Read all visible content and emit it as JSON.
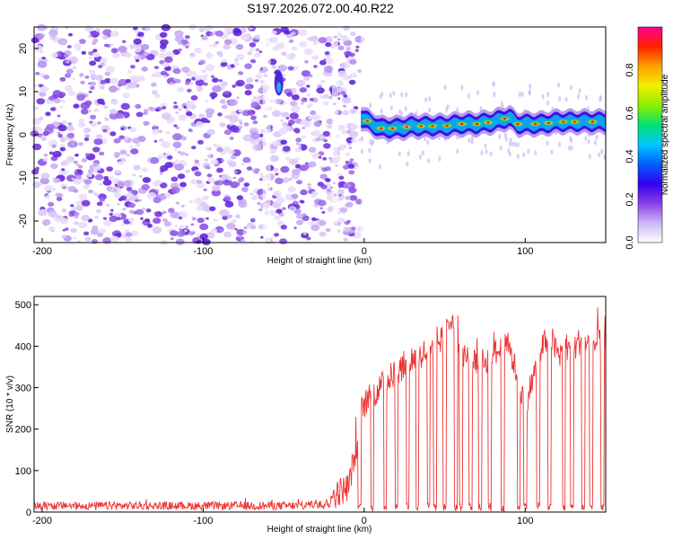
{
  "title": "S197.2026.072.00.40.R22",
  "chart_data": [
    {
      "type": "heatmap",
      "xlabel": "Height of straight line (km)",
      "ylabel": "Frequency (Hz)",
      "xlim": [
        -205,
        150
      ],
      "ylim": [
        -25,
        25
      ],
      "xticks": [
        -200,
        -100,
        0,
        100
      ],
      "yticks": [
        -20,
        -10,
        0,
        10,
        20
      ],
      "colorbar": {
        "label": "Normalized spectral amplitude",
        "range": [
          0.0,
          1.0
        ],
        "ticks": [
          0.0,
          0.2,
          0.4,
          0.6,
          0.8
        ],
        "tick_labels": [
          "0.0",
          "0.2",
          "0.4",
          "0.6",
          "0.8"
        ],
        "colors": [
          "#ffffff",
          "#ccb6f5",
          "#8a3fe6",
          "#3300ee",
          "#0060ff",
          "#00c8ff",
          "#00e070",
          "#8cf000",
          "#f0f000",
          "#ffa000",
          "#ff2000",
          "#ff0090"
        ]
      },
      "noise_region_x": [
        -205,
        -2
      ],
      "signal_track": {
        "x": [
          -2,
          10,
          20,
          30,
          40,
          50,
          60,
          70,
          80,
          90,
          95,
          100,
          110,
          120,
          130,
          140,
          150
        ],
        "freq": [
          4,
          1.5,
          1.5,
          2,
          2,
          2,
          2.5,
          2.5,
          3,
          4,
          2.5,
          2.5,
          2.5,
          3,
          3,
          3,
          3
        ]
      }
    },
    {
      "type": "line",
      "xlabel": "Height of straight line (km)",
      "ylabel": "SNR (10 * v/v)",
      "xlim": [
        -205,
        150
      ],
      "ylim": [
        0,
        520
      ],
      "xticks": [
        -200,
        -100,
        0,
        100
      ],
      "yticks": [
        0,
        100,
        200,
        300,
        400,
        500
      ],
      "color": "#ee3333",
      "baseline_segment": {
        "x": [
          -205,
          -20
        ],
        "level": 15
      },
      "envelope": {
        "x": [
          -20,
          -10,
          -5,
          -3,
          0,
          5,
          10,
          15,
          20,
          30,
          40,
          50,
          55,
          60,
          70,
          80,
          90,
          100,
          110,
          115,
          120,
          125,
          130,
          135,
          140,
          145,
          150
        ],
        "y": [
          40,
          60,
          150,
          230,
          260,
          280,
          300,
          320,
          340,
          370,
          390,
          420,
          480,
          390,
          350,
          380,
          400,
          260,
          390,
          430,
          380,
          400,
          390,
          420,
          400,
          410,
          400
        ]
      },
      "dropouts_x": [
        -3,
        5,
        13,
        20,
        27,
        33,
        40,
        44,
        50,
        57,
        60,
        66,
        72,
        78,
        86,
        96,
        100,
        108,
        115,
        124,
        129,
        136,
        141,
        148
      ]
    }
  ]
}
